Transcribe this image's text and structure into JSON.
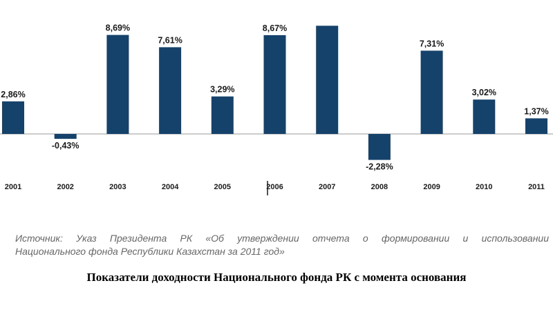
{
  "chart_data": {
    "type": "bar",
    "categories": [
      "2001",
      "2002",
      "2003",
      "2004",
      "2005",
      "2006",
      "2007",
      "2008",
      "2009",
      "2010",
      "2011"
    ],
    "values": [
      2.86,
      -0.43,
      8.69,
      7.61,
      3.29,
      8.67,
      9.5,
      -2.28,
      7.31,
      3.02,
      1.37
    ],
    "value_labels": [
      "2,86%",
      "-0,43%",
      "8,69%",
      "7,61%",
      "3,29%",
      "8,67%",
      "",
      "-2,28%",
      "7,31%",
      "3,02%",
      "1,37%"
    ],
    "ylim": [
      -3,
      10
    ],
    "bar_color": "#15426b",
    "grid": false
  },
  "source_line1": "Источник: Указ Президента РК «Об утверждении отчета о формировании и использовании",
  "source_line2": "Национального фонда Республики Казахстан за 2011 год»",
  "caption": "Показатели доходности Национального фонда РК с момента основания"
}
